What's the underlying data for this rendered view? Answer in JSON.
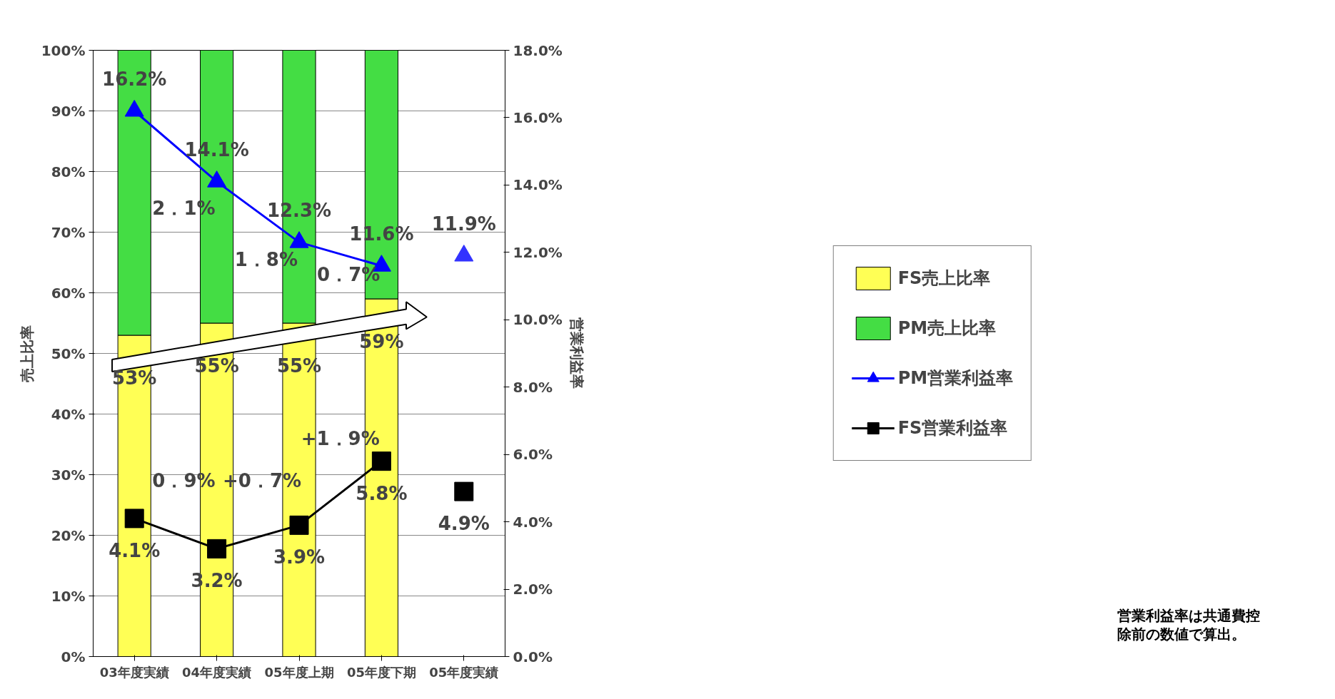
{
  "chart_data": {
    "type": "bar",
    "stacked": true,
    "ylabel": "売上比率",
    "y2label": "営業利益率",
    "categories": [
      "03年度実績",
      "04年度実績",
      "05年度上期",
      "05年度下期",
      "05年度実績"
    ],
    "series": [
      {
        "name": "FS売上比率",
        "color": "#ffff55",
        "values": [
          53,
          55,
          55,
          59,
          null
        ],
        "value_labels": [
          "53%",
          "55%",
          "55%",
          "59%",
          null
        ]
      },
      {
        "name": "PM売上比率",
        "color": "#44dd44",
        "values": [
          47,
          45,
          45,
          41,
          null
        ]
      },
      {
        "name": "PM営業利益率",
        "type": "line",
        "axis": "y2",
        "color": "#0000ff",
        "marker": "triangle",
        "values": [
          16.2,
          14.1,
          12.3,
          11.6,
          null
        ],
        "value_labels": [
          "16.2%",
          "14.1%",
          "12.3%",
          "11.6%",
          null
        ]
      },
      {
        "name": "FS営業利益率",
        "type": "line",
        "axis": "y2",
        "color": "#000000",
        "marker": "square",
        "values": [
          4.1,
          3.2,
          3.9,
          5.8,
          null
        ],
        "value_labels": [
          "4.1%",
          "3.2%",
          "3.9%",
          "5.8%",
          null
        ]
      },
      {
        "type": "scatter",
        "axis": "y2",
        "color": "#3333ff",
        "marker": "triangle",
        "values": [
          null,
          null,
          null,
          null,
          11.9
        ],
        "value_labels": [
          null,
          null,
          null,
          null,
          "11.9%"
        ]
      },
      {
        "type": "scatter",
        "axis": "y2",
        "color": "#000000",
        "marker": "square",
        "values": [
          null,
          null,
          null,
          null,
          4.9
        ],
        "value_labels": [
          null,
          null,
          null,
          null,
          "4.9%"
        ]
      }
    ],
    "ylim": [
      0,
      100
    ],
    "yticks": [
      {
        "value": 0,
        "label": "0%"
      },
      {
        "value": 10,
        "label": "10%"
      },
      {
        "value": 20,
        "label": "20%"
      },
      {
        "value": 30,
        "label": "30%"
      },
      {
        "value": 40,
        "label": "40%"
      },
      {
        "value": 50,
        "label": "50%"
      },
      {
        "value": 60,
        "label": "60%"
      },
      {
        "value": 70,
        "label": "70%"
      },
      {
        "value": 80,
        "label": "80%"
      },
      {
        "value": 90,
        "label": "90%"
      },
      {
        "value": 100,
        "label": "100%"
      }
    ],
    "y2lim": [
      0,
      18
    ],
    "y2ticks": [
      {
        "value": 0,
        "label": "0.0%"
      },
      {
        "value": 2,
        "label": "2.0%"
      },
      {
        "value": 4,
        "label": "4.0%"
      },
      {
        "value": 6,
        "label": "6.0%"
      },
      {
        "value": 8,
        "label": "8.0%"
      },
      {
        "value": 10,
        "label": "10.0%"
      },
      {
        "value": 12,
        "label": "12.0%"
      },
      {
        "value": 14,
        "label": "14.0%"
      },
      {
        "value": 16,
        "label": "16.0%"
      },
      {
        "value": 18,
        "label": "18.0%"
      }
    ],
    "grid": "y",
    "legend": "right",
    "annotations": [
      "2．1%",
      "1．8%",
      "0．7%",
      "0．9%",
      "+0．7%",
      "+1．9%",
      "営業利益率は共通費控除前の数値で算出。"
    ]
  }
}
